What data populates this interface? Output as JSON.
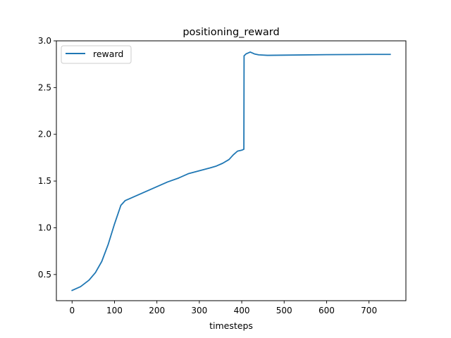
{
  "chart_data": {
    "type": "line",
    "title": "positioning_reward",
    "xlabel": "timesteps",
    "ylabel": "",
    "xlim": [
      -37,
      787
    ],
    "ylim": [
      0.22,
      3.0
    ],
    "xticks": [
      0,
      100,
      200,
      300,
      400,
      500,
      600,
      700
    ],
    "yticks": [
      0.5,
      1.0,
      1.5,
      2.0,
      2.5,
      3.0
    ],
    "xtick_labels": [
      "0",
      "100",
      "200",
      "300",
      "400",
      "500",
      "600",
      "700"
    ],
    "ytick_labels": [
      "0.5",
      "1.0",
      "1.5",
      "2.0",
      "2.5",
      "3.0"
    ],
    "grid": false,
    "legend_position": "top-left",
    "series": [
      {
        "name": "reward",
        "color": "#1f77b4",
        "x": [
          0,
          20,
          40,
          55,
          70,
          85,
          100,
          115,
          125,
          135,
          150,
          175,
          200,
          225,
          250,
          275,
          300,
          325,
          340,
          355,
          370,
          380,
          390,
          400,
          405,
          405.5,
          410,
          420,
          430,
          440,
          460,
          500,
          600,
          700,
          750
        ],
        "y": [
          0.33,
          0.37,
          0.44,
          0.52,
          0.64,
          0.82,
          1.04,
          1.24,
          1.29,
          1.31,
          1.34,
          1.39,
          1.44,
          1.49,
          1.53,
          1.58,
          1.61,
          1.64,
          1.66,
          1.69,
          1.73,
          1.78,
          1.82,
          1.83,
          1.84,
          2.84,
          2.86,
          2.88,
          2.86,
          2.85,
          2.845,
          2.847,
          2.852,
          2.855,
          2.855
        ]
      }
    ]
  }
}
